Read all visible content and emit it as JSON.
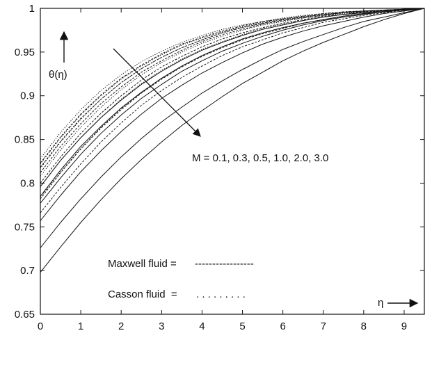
{
  "chart_data": {
    "type": "line",
    "title": "",
    "xlabel": "η",
    "ylabel": "θ(η)",
    "xlim": [
      0,
      9.5
    ],
    "ylim": [
      0.65,
      1.0
    ],
    "xticks": [
      0,
      1,
      2,
      3,
      4,
      5,
      6,
      7,
      8,
      9
    ],
    "xtick_labels": [
      "0",
      "1",
      "2",
      "3",
      "4",
      "5",
      "6",
      "7",
      "8",
      "9"
    ],
    "yticks": [
      0.65,
      0.7,
      0.75,
      0.8,
      0.85,
      0.9,
      0.95,
      1.0
    ],
    "ytick_labels": [
      "0.65",
      "0.7",
      "0.75",
      "0.8",
      "0.85",
      "0.9",
      "0.95",
      "1"
    ],
    "grid": false,
    "parameter_label": "M = 0.1, 0.3, 0.5, 1.0, 2.0, 3.0",
    "legend": [
      {
        "label": "Maxwell fluid =",
        "style": "dashed",
        "marker_text": "-----------------"
      },
      {
        "label": "Casson fluid  =",
        "style": "dotted",
        "marker_text": ". . . . . . . . ."
      }
    ],
    "x": [
      0,
      0.5,
      1,
      1.5,
      2,
      2.5,
      3,
      3.5,
      4,
      4.5,
      5,
      5.5,
      6,
      6.5,
      7,
      7.5,
      8,
      8.5,
      9,
      9.5
    ],
    "series": [
      {
        "style": "dotted",
        "values": [
          0.828,
          0.858,
          0.884,
          0.906,
          0.924,
          0.939,
          0.951,
          0.961,
          0.969,
          0.976,
          0.981,
          0.985,
          0.989,
          0.992,
          0.994,
          0.996,
          0.997,
          0.998,
          0.999,
          1.0
        ]
      },
      {
        "style": "dotted",
        "values": [
          0.822,
          0.852,
          0.878,
          0.9,
          0.919,
          0.934,
          0.947,
          0.958,
          0.966,
          0.973,
          0.979,
          0.984,
          0.988,
          0.991,
          0.993,
          0.995,
          0.997,
          0.998,
          0.999,
          1.0
        ]
      },
      {
        "style": "dotted",
        "values": [
          0.817,
          0.847,
          0.873,
          0.896,
          0.915,
          0.931,
          0.944,
          0.955,
          0.964,
          0.972,
          0.978,
          0.983,
          0.987,
          0.99,
          0.993,
          0.995,
          0.997,
          0.998,
          0.999,
          1.0
        ]
      },
      {
        "style": "dotted",
        "values": [
          0.808,
          0.838,
          0.864,
          0.887,
          0.907,
          0.924,
          0.938,
          0.95,
          0.96,
          0.968,
          0.975,
          0.981,
          0.985,
          0.989,
          0.992,
          0.994,
          0.996,
          0.998,
          0.999,
          1.0
        ]
      },
      {
        "style": "dotted",
        "values": [
          0.796,
          0.826,
          0.852,
          0.875,
          0.896,
          0.914,
          0.929,
          0.942,
          0.953,
          0.962,
          0.97,
          0.977,
          0.982,
          0.986,
          0.99,
          0.993,
          0.995,
          0.997,
          0.999,
          1.0
        ]
      },
      {
        "style": "dotted",
        "values": [
          0.784,
          0.813,
          0.84,
          0.864,
          0.885,
          0.904,
          0.92,
          0.934,
          0.946,
          0.956,
          0.965,
          0.972,
          0.978,
          0.983,
          0.987,
          0.991,
          0.994,
          0.996,
          0.998,
          1.0
        ]
      },
      {
        "style": "dashed",
        "values": [
          0.823,
          0.853,
          0.879,
          0.901,
          0.92,
          0.935,
          0.948,
          0.959,
          0.967,
          0.974,
          0.98,
          0.985,
          0.988,
          0.991,
          0.994,
          0.996,
          0.997,
          0.998,
          0.999,
          1.0
        ]
      },
      {
        "style": "dashed",
        "values": [
          0.818,
          0.848,
          0.874,
          0.896,
          0.915,
          0.931,
          0.944,
          0.955,
          0.964,
          0.972,
          0.978,
          0.983,
          0.987,
          0.99,
          0.993,
          0.995,
          0.997,
          0.998,
          0.999,
          1.0
        ]
      },
      {
        "style": "dashed",
        "values": [
          0.812,
          0.842,
          0.868,
          0.891,
          0.91,
          0.927,
          0.94,
          0.952,
          0.962,
          0.97,
          0.976,
          0.982,
          0.986,
          0.989,
          0.992,
          0.995,
          0.996,
          0.998,
          0.999,
          1.0
        ]
      },
      {
        "style": "dashed",
        "values": [
          0.8,
          0.83,
          0.857,
          0.88,
          0.9,
          0.918,
          0.933,
          0.945,
          0.956,
          0.965,
          0.972,
          0.978,
          0.983,
          0.987,
          0.991,
          0.993,
          0.996,
          0.997,
          0.999,
          1.0
        ]
      },
      {
        "style": "dashed",
        "values": [
          0.782,
          0.812,
          0.839,
          0.863,
          0.884,
          0.903,
          0.919,
          0.933,
          0.945,
          0.955,
          0.964,
          0.971,
          0.977,
          0.983,
          0.987,
          0.991,
          0.994,
          0.996,
          0.998,
          1.0
        ]
      },
      {
        "style": "dashed",
        "values": [
          0.766,
          0.795,
          0.822,
          0.847,
          0.869,
          0.889,
          0.906,
          0.921,
          0.934,
          0.946,
          0.956,
          0.964,
          0.972,
          0.978,
          0.984,
          0.988,
          0.992,
          0.995,
          0.998,
          1.0
        ]
      },
      {
        "style": "solid",
        "values": [
          0.796,
          0.826,
          0.852,
          0.875,
          0.895,
          0.913,
          0.928,
          0.941,
          0.952,
          0.961,
          0.969,
          0.976,
          0.981,
          0.986,
          0.99,
          0.993,
          0.995,
          0.997,
          0.999,
          1.0
        ]
      },
      {
        "style": "solid",
        "values": [
          0.785,
          0.815,
          0.842,
          0.865,
          0.886,
          0.904,
          0.92,
          0.934,
          0.946,
          0.956,
          0.965,
          0.972,
          0.978,
          0.983,
          0.987,
          0.991,
          0.994,
          0.996,
          0.998,
          1.0
        ]
      },
      {
        "style": "solid",
        "values": [
          0.777,
          0.806,
          0.833,
          0.857,
          0.878,
          0.897,
          0.913,
          0.928,
          0.94,
          0.951,
          0.96,
          0.968,
          0.975,
          0.981,
          0.986,
          0.99,
          0.993,
          0.996,
          0.998,
          1.0
        ]
      },
      {
        "style": "solid",
        "values": [
          0.757,
          0.786,
          0.813,
          0.837,
          0.859,
          0.879,
          0.897,
          0.912,
          0.926,
          0.938,
          0.949,
          0.959,
          0.967,
          0.974,
          0.98,
          0.985,
          0.99,
          0.994,
          0.997,
          1.0
        ]
      },
      {
        "style": "solid",
        "values": [
          0.726,
          0.755,
          0.782,
          0.807,
          0.83,
          0.851,
          0.87,
          0.887,
          0.903,
          0.917,
          0.93,
          0.942,
          0.953,
          0.962,
          0.97,
          0.978,
          0.985,
          0.99,
          0.995,
          1.0
        ]
      },
      {
        "style": "solid",
        "values": [
          0.698,
          0.727,
          0.755,
          0.781,
          0.805,
          0.827,
          0.847,
          0.866,
          0.883,
          0.899,
          0.914,
          0.927,
          0.94,
          0.951,
          0.961,
          0.97,
          0.979,
          0.987,
          0.994,
          1.0
        ]
      }
    ]
  }
}
